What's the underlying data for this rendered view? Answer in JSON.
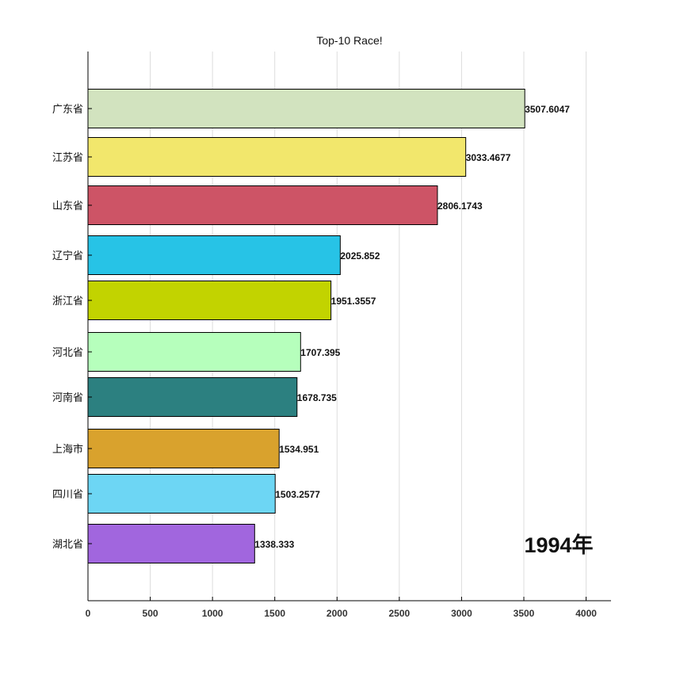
{
  "chart_data": {
    "type": "bar",
    "orientation": "horizontal",
    "title": "Top-10 Race!",
    "annotation": "1994年",
    "categories": [
      "广东省",
      "江苏省",
      "山东省",
      "辽宁省",
      "浙江省",
      "河北省",
      "河南省",
      "上海市",
      "四川省",
      "湖北省"
    ],
    "values": [
      3507.6047,
      3033.4677,
      2806.1743,
      2025.852,
      1951.3557,
      1707.395,
      1678.735,
      1534.951,
      1503.2577,
      1338.333
    ],
    "value_labels": [
      "3507.6047",
      "3033.4677",
      "2806.1743",
      "2025.852",
      "1951.3557",
      "1707.395",
      "1678.735",
      "1534.951",
      "1503.2577",
      "1338.333"
    ],
    "colors": [
      "#d2e3bf",
      "#f2e76c",
      "#cd5466",
      "#27c3e6",
      "#c2d300",
      "#b6ffbc",
      "#2c8080",
      "#d9a22d",
      "#6dd6f4",
      "#a166de"
    ],
    "xlim": [
      0,
      4200
    ],
    "xticks": [
      0,
      500,
      1000,
      1500,
      2000,
      2500,
      3000,
      3500,
      4000
    ],
    "xtick_labels": [
      "0",
      "500",
      "1000",
      "1500",
      "2000",
      "2500",
      "3000",
      "3500",
      "4000"
    ],
    "grid": "vertical",
    "legend": "none"
  }
}
